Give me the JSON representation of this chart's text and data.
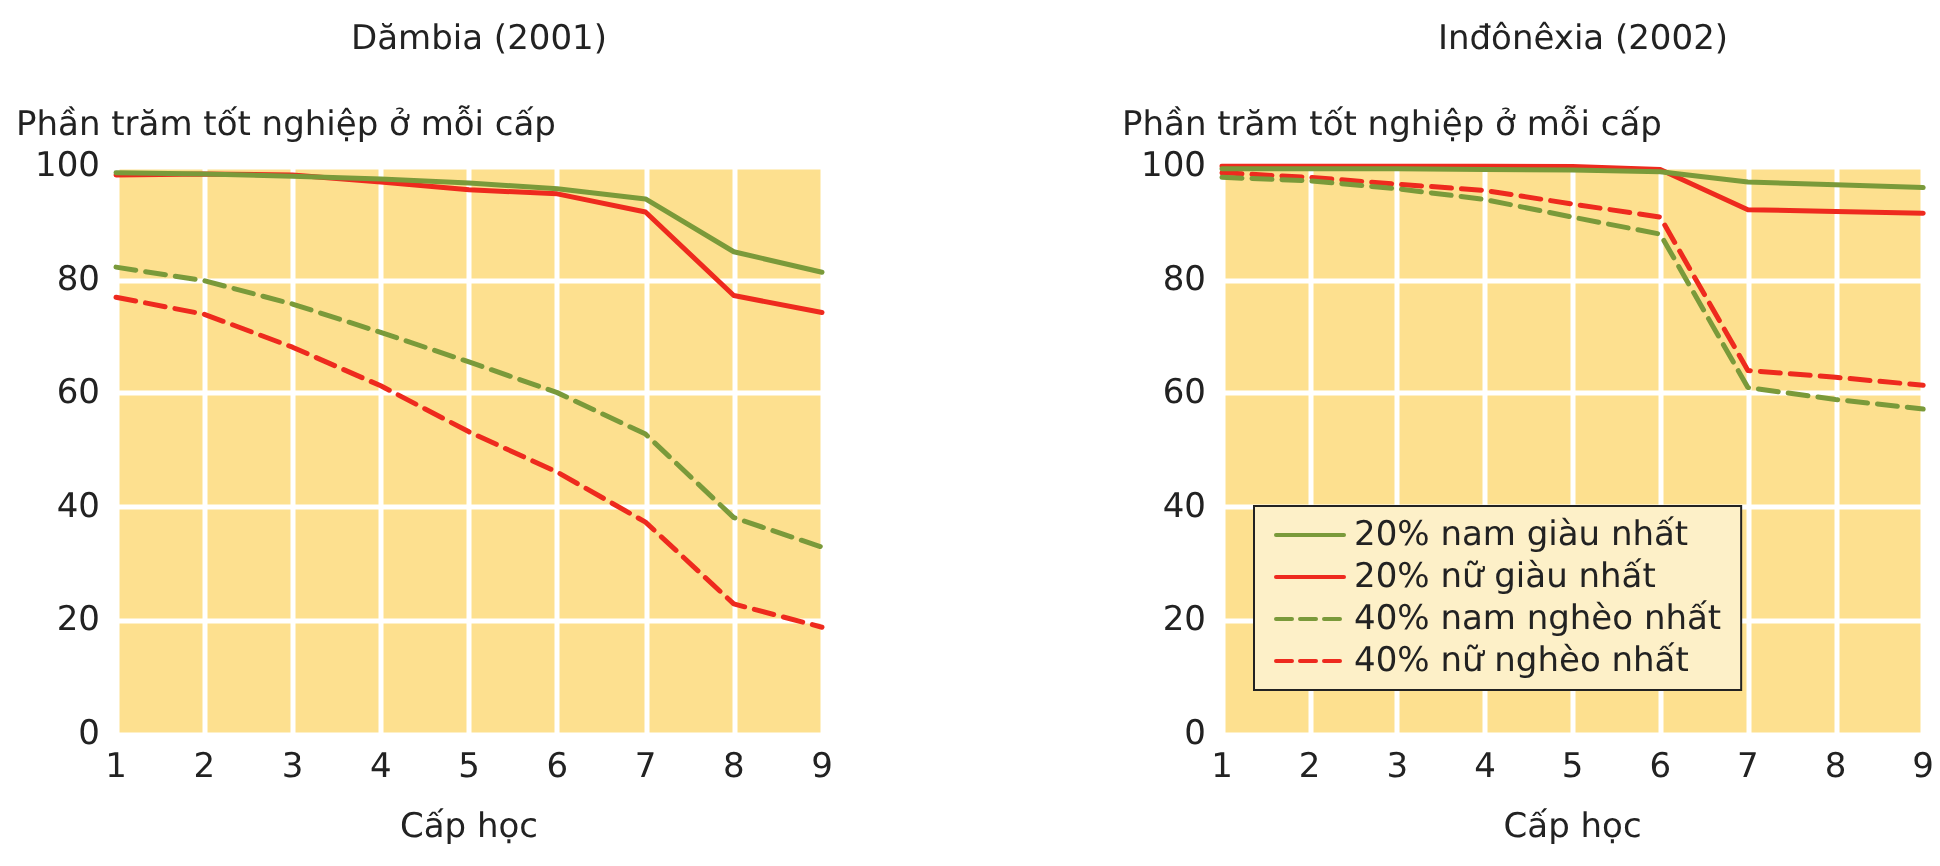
{
  "chart_data": [
    {
      "type": "line",
      "title": "Dămbia (2001)",
      "ylabel": "Phần trăm tốt nghiệp ở mỗi cấp",
      "xlabel": "Cấp học",
      "x": [
        1,
        2,
        3,
        4,
        5,
        6,
        7,
        8,
        9
      ],
      "xlim": [
        1,
        9
      ],
      "xticks": [
        1,
        2,
        3,
        4,
        5,
        6,
        7,
        8,
        9
      ],
      "ylim": [
        0,
        100
      ],
      "yticks": [
        0,
        20,
        40,
        60,
        80,
        100
      ],
      "grid": true,
      "legend": false,
      "marker": "none",
      "series": [
        {
          "color": "#7a9a3a",
          "line_style": "solid",
          "values": [
            98.8,
            98.6,
            98.2,
            97.7,
            97,
            96,
            94.2,
            84.9,
            81.3
          ]
        },
        {
          "color": "#ee2a1e",
          "line_style": "solid",
          "values": [
            98.4,
            98.6,
            98.4,
            97.2,
            95.8,
            95.1,
            91.9,
            77.2,
            74.2
          ]
        },
        {
          "color": "#7a9a3a",
          "line_style": "dashed",
          "values": [
            82.2,
            79.8,
            75.7,
            70.7,
            65.5,
            60.1,
            52.8,
            38.1,
            32.9
          ]
        },
        {
          "color": "#ee2a1e",
          "line_style": "dashed",
          "values": [
            76.9,
            73.9,
            68.1,
            61.3,
            53.2,
            46.1,
            37.3,
            22.9,
            18.8
          ]
        }
      ]
    },
    {
      "type": "line",
      "title": "Inđônêxia (2002)",
      "ylabel": "Phần trăm tốt nghiệp ở mỗi cấp",
      "xlabel": "Cấp học",
      "x": [
        1,
        2,
        3,
        4,
        5,
        6,
        7,
        8,
        9
      ],
      "xlim": [
        1,
        9
      ],
      "xticks": [
        1,
        2,
        3,
        4,
        5,
        6,
        7,
        8,
        9
      ],
      "ylim": [
        0,
        100
      ],
      "yticks": [
        0,
        20,
        40,
        60,
        80,
        100
      ],
      "grid": true,
      "legend": "bottom left",
      "marker": "none",
      "series": [
        {
          "name": "20% nam giàu nhất",
          "color": "#7a9a3a",
          "line_style": "solid",
          "values": [
            99.5,
            99.5,
            99.5,
            99.4,
            99.3,
            99,
            97.2,
            96.7,
            96.2
          ]
        },
        {
          "name": "20% nữ giàu nhất",
          "color": "#ee2a1e",
          "line_style": "solid",
          "values": [
            100,
            100,
            100,
            100,
            99.9,
            99.4,
            92.3,
            92,
            91.7
          ]
        },
        {
          "name": "40% nam nghèo nhất",
          "color": "#7a9a3a",
          "line_style": "dashed",
          "values": [
            98,
            97.4,
            96,
            94.1,
            91,
            88,
            61,
            58.9,
            57.2
          ]
        },
        {
          "name": "40% nữ nghèo nhất",
          "color": "#ee2a1e",
          "line_style": "dashed",
          "values": [
            98.8,
            98,
            96.8,
            95.7,
            93.3,
            91,
            64,
            62.8,
            61.4
          ]
        }
      ]
    }
  ]
}
